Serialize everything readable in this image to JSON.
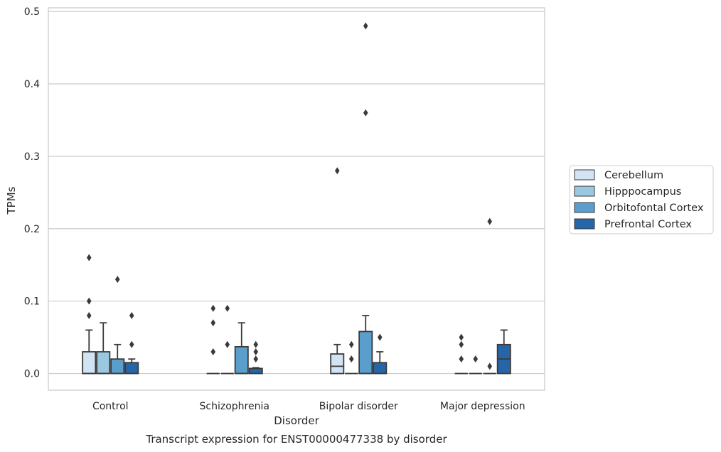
{
  "chart_data": {
    "type": "box",
    "title": "",
    "caption": "Transcript expression for ENST00000477338 by disorder",
    "xlabel": "Disorder",
    "ylabel": "TPMs",
    "ylim": [
      -0.023,
      0.505
    ],
    "yticks": [
      "0.0",
      "0.1",
      "0.2",
      "0.3",
      "0.4",
      "0.5"
    ],
    "grid": true,
    "legend_position": "right",
    "categories": [
      "Control",
      "Schizophrenia",
      "Bipolar disorder",
      "Major depression"
    ],
    "series": [
      {
        "name": "Cerebellum",
        "color": "#d2e3f3",
        "boxes": [
          {
            "q1": 0.0,
            "median": 0.0,
            "q3": 0.03,
            "whisker_low": 0.0,
            "whisker_high": 0.06,
            "outliers": [
              0.08,
              0.1,
              0.16
            ]
          },
          {
            "q1": 0.0,
            "median": 0.0,
            "q3": 0.0,
            "whisker_low": 0.0,
            "whisker_high": 0.0,
            "outliers": [
              0.03,
              0.07,
              0.09
            ]
          },
          {
            "q1": 0.0,
            "median": 0.01,
            "q3": 0.027,
            "whisker_low": 0.0,
            "whisker_high": 0.04,
            "outliers": [
              0.28
            ]
          },
          {
            "q1": 0.0,
            "median": 0.0,
            "q3": 0.0,
            "whisker_low": 0.0,
            "whisker_high": 0.0,
            "outliers": [
              0.02,
              0.04,
              0.05
            ]
          }
        ]
      },
      {
        "name": "Hipppocampus",
        "color": "#9ac8e0",
        "boxes": [
          {
            "q1": 0.0,
            "median": 0.0,
            "q3": 0.03,
            "whisker_low": 0.0,
            "whisker_high": 0.07,
            "outliers": []
          },
          {
            "q1": 0.0,
            "median": 0.0,
            "q3": 0.0,
            "whisker_low": 0.0,
            "whisker_high": 0.0,
            "outliers": [
              0.04,
              0.09
            ]
          },
          {
            "q1": 0.0,
            "median": 0.0,
            "q3": 0.0,
            "whisker_low": 0.0,
            "whisker_high": 0.0,
            "outliers": [
              0.02,
              0.04
            ]
          },
          {
            "q1": 0.0,
            "median": 0.0,
            "q3": 0.0,
            "whisker_low": 0.0,
            "whisker_high": 0.0,
            "outliers": [
              0.02
            ]
          }
        ]
      },
      {
        "name": "Orbitofontal Cortex",
        "color": "#5a9fcc",
        "boxes": [
          {
            "q1": 0.0,
            "median": 0.0,
            "q3": 0.02,
            "whisker_low": 0.0,
            "whisker_high": 0.04,
            "outliers": [
              0.13
            ]
          },
          {
            "q1": 0.0,
            "median": 0.0,
            "q3": 0.037,
            "whisker_low": 0.0,
            "whisker_high": 0.07,
            "outliers": []
          },
          {
            "q1": 0.0,
            "median": 0.0,
            "q3": 0.058,
            "whisker_low": 0.0,
            "whisker_high": 0.08,
            "outliers": [
              0.36,
              0.48
            ]
          },
          {
            "q1": 0.0,
            "median": 0.0,
            "q3": 0.0,
            "whisker_low": 0.0,
            "whisker_high": 0.0,
            "outliers": [
              0.01,
              0.21
            ]
          }
        ]
      },
      {
        "name": "Prefrontal Cortex",
        "color": "#2565a8",
        "boxes": [
          {
            "q1": 0.0,
            "median": 0.0,
            "q3": 0.015,
            "whisker_low": 0.0,
            "whisker_high": 0.02,
            "outliers": [
              0.04,
              0.08
            ]
          },
          {
            "q1": 0.0,
            "median": 0.0,
            "q3": 0.007,
            "whisker_low": 0.0,
            "whisker_high": 0.008,
            "outliers": [
              0.02,
              0.03,
              0.04
            ]
          },
          {
            "q1": 0.0,
            "median": 0.0,
            "q3": 0.015,
            "whisker_low": 0.0,
            "whisker_high": 0.03,
            "outliers": [
              0.05
            ]
          },
          {
            "q1": 0.0,
            "median": 0.02,
            "q3": 0.04,
            "whisker_low": 0.0,
            "whisker_high": 0.06,
            "outliers": []
          }
        ]
      }
    ]
  }
}
